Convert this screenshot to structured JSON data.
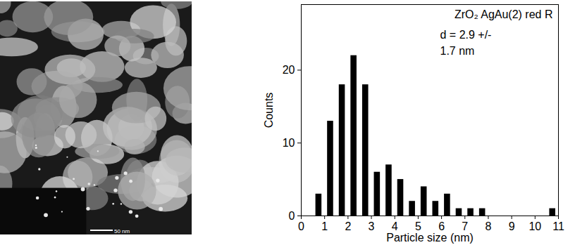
{
  "chart_data": {
    "type": "histogram",
    "x_label": "Particle size (nm)",
    "y_label": "Counts",
    "annotations": [
      "ZrO₂ AgAu(2) red R",
      "d = 2.9 +/-",
      "1.7 nm"
    ],
    "bins": [
      0.5,
      1.0,
      1.5,
      2.0,
      2.5,
      3.0,
      3.5,
      4.0,
      4.5,
      5.0,
      5.5,
      6.0,
      6.5,
      7.0,
      7.5,
      8.0,
      8.5,
      9.0,
      9.5,
      10.0,
      10.5,
      11.0
    ],
    "counts": [
      3,
      13,
      18,
      22,
      18,
      6,
      7,
      5,
      2,
      4,
      2,
      3,
      1,
      1,
      1,
      0,
      0,
      0,
      0,
      0,
      1
    ],
    "color": "#000000",
    "xlim": [
      0,
      11
    ],
    "xticks": [
      0,
      1,
      2,
      3,
      4,
      5,
      6,
      7,
      8,
      9,
      10,
      11
    ],
    "ylim": [
      0,
      29
    ],
    "yticks": [
      0,
      10,
      20
    ],
    "grid": false
  },
  "micrograph": {
    "scale_bar_label": "50 nm"
  }
}
